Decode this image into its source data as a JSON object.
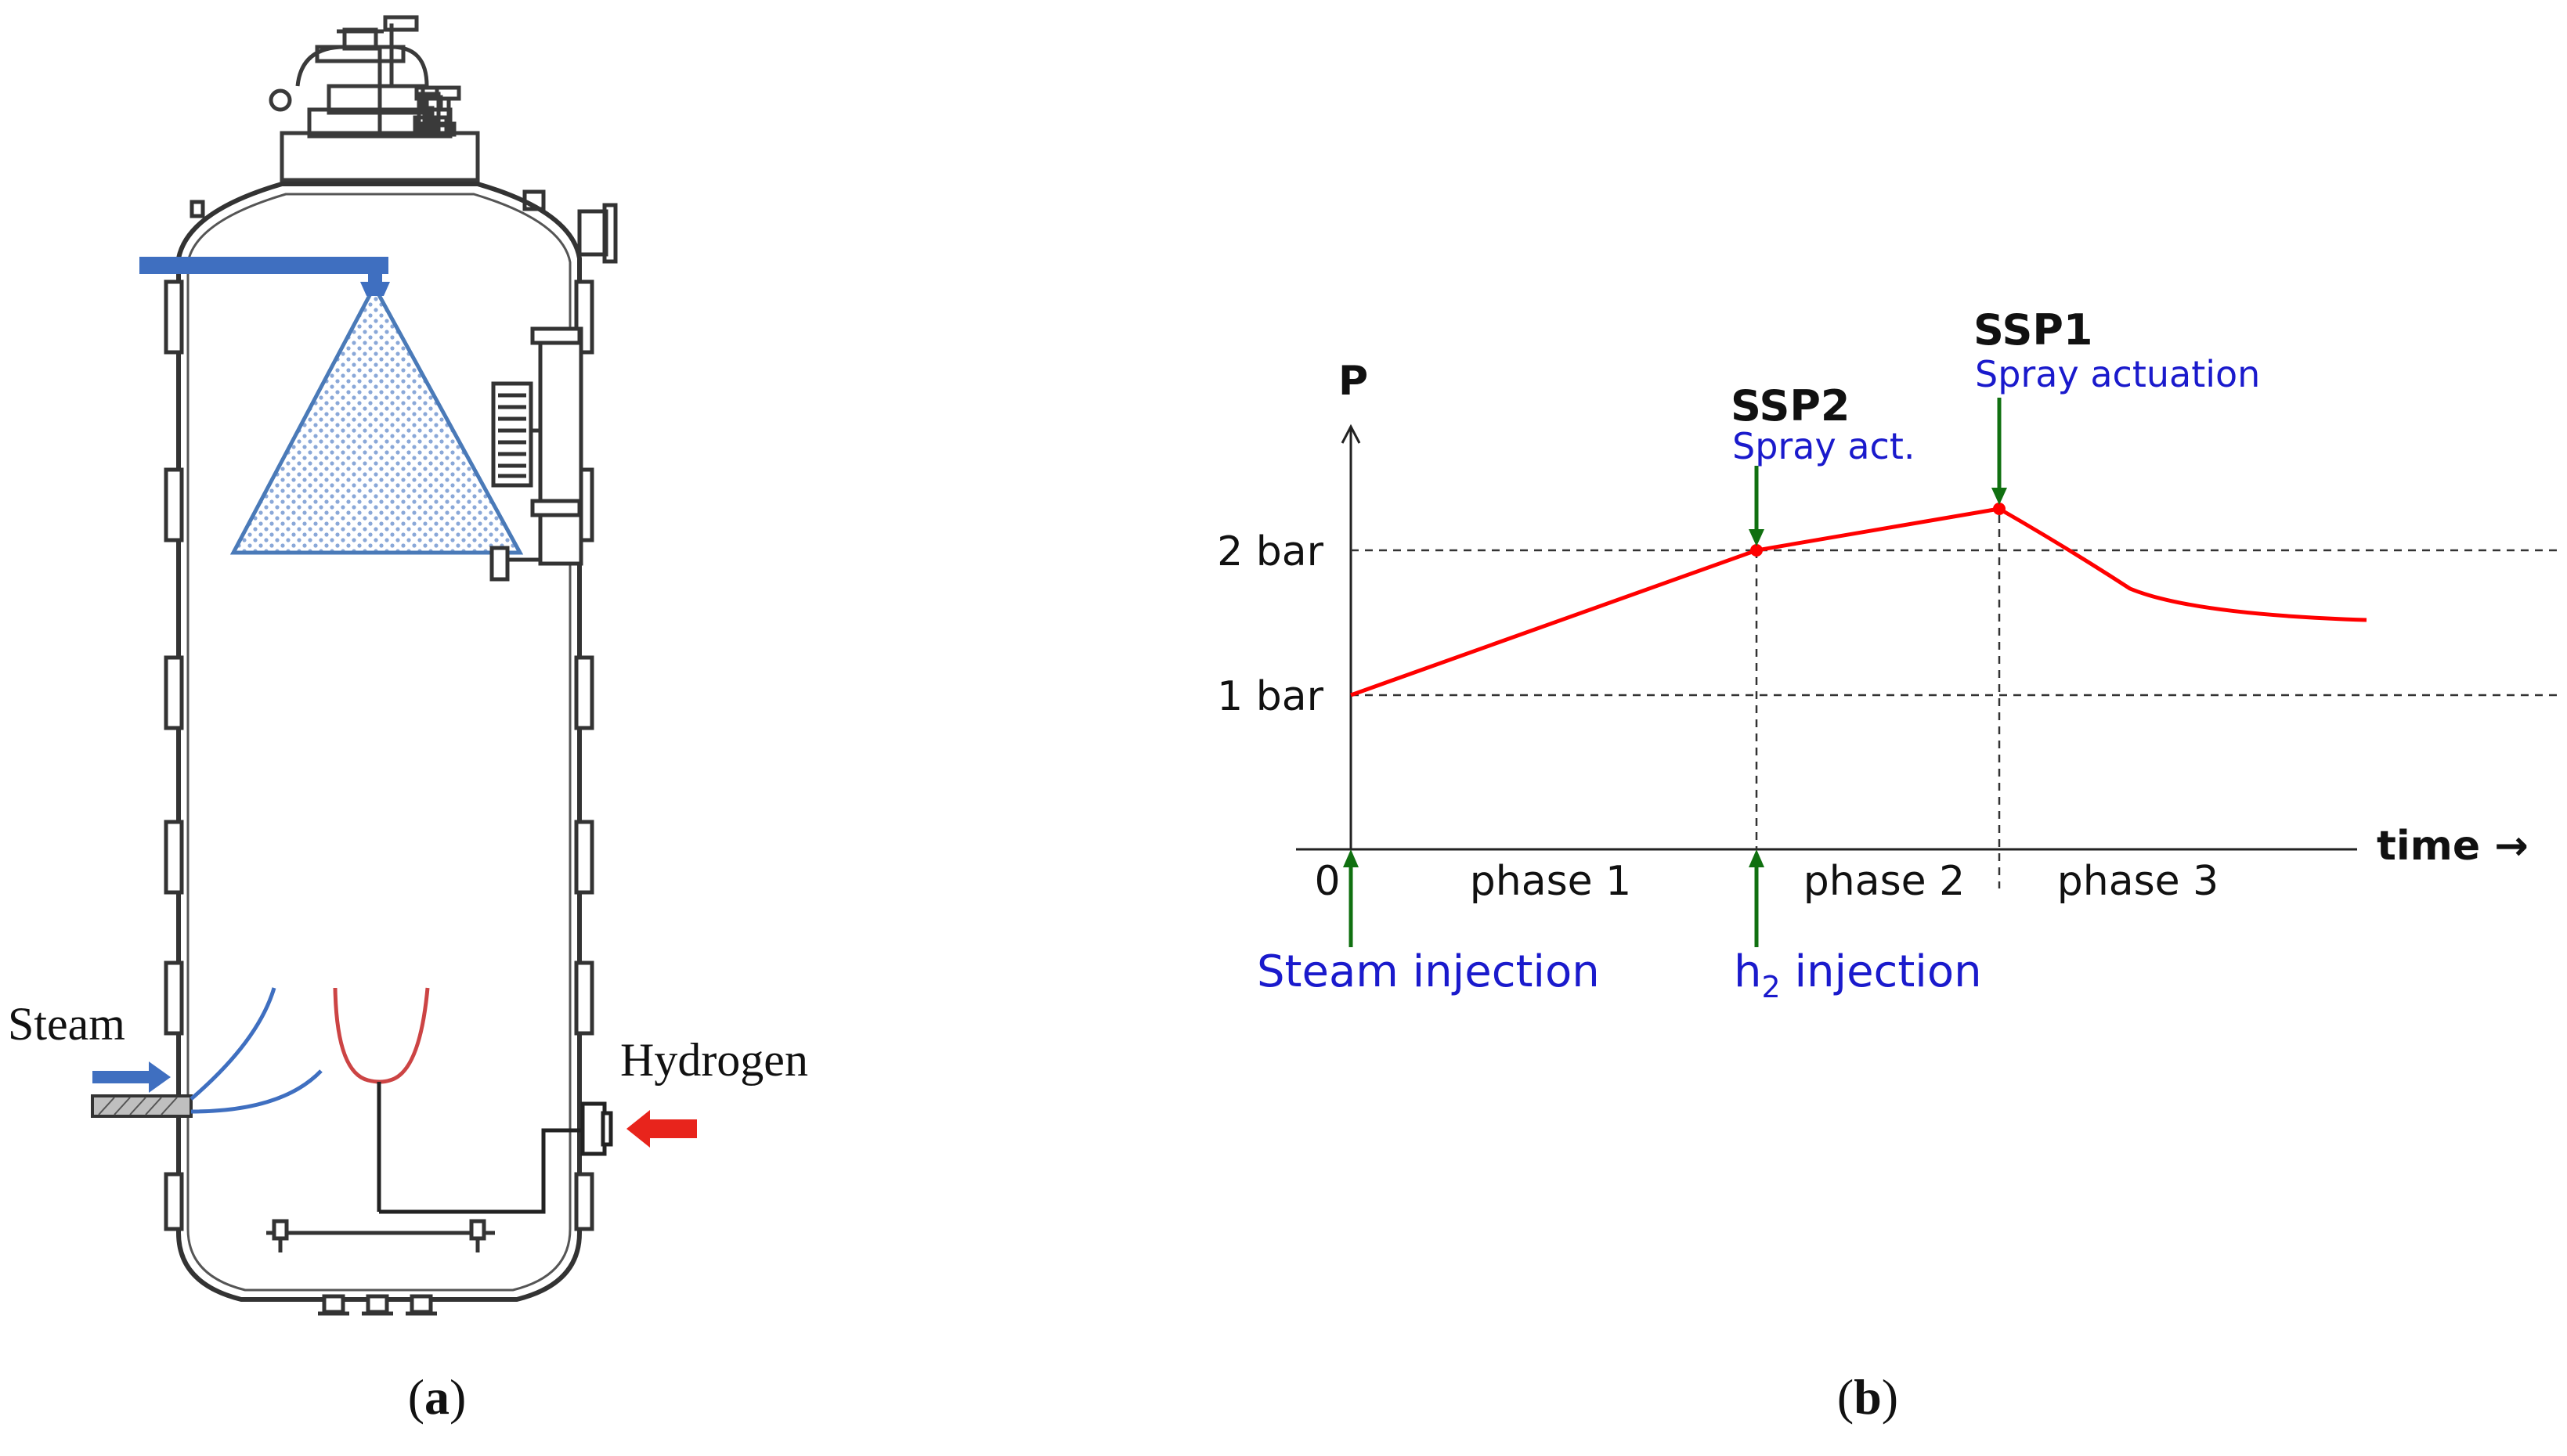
{
  "panel_a": {
    "caption_letter": "a",
    "labels": {
      "steam": "Steam",
      "hydrogen": "Hydrogen"
    }
  },
  "panel_b": {
    "caption_letter": "b",
    "y_axis_label": "P",
    "x_axis_label": "time →",
    "origin_label": "0",
    "pressure_levels": [
      "1 bar",
      "2 bar"
    ],
    "phases": [
      "phase 1",
      "phase 2",
      "phase 3"
    ],
    "events": {
      "steam": "Steam injection",
      "h2_base": "h",
      "h2_sub": "2",
      "h2_rest": " injection",
      "ssp2_title": "SSP2",
      "ssp2_sub": "Spray act.",
      "ssp1_title": "SSP1",
      "ssp1_sub": "Spray actuation"
    }
  },
  "colors": {
    "curve": "#ff0000",
    "arrows": "#107010",
    "event_text": "#1a1acc",
    "spray": "#4a7ab8",
    "steam_pipe": "#3f6fc0",
    "hydrogen_arrow": "#e8241c",
    "igniter": "#cc4444"
  }
}
